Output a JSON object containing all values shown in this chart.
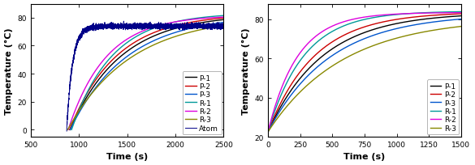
{
  "left": {
    "xlim": [
      500,
      2500
    ],
    "ylim": [
      -5,
      90
    ],
    "xticks": [
      500,
      1000,
      1500,
      2000,
      2500
    ],
    "yticks": [
      0,
      20,
      40,
      60,
      80
    ],
    "xlabel": "Time (s)",
    "ylabel": "Temperature (°C)",
    "series": [
      {
        "label": "P-1",
        "color": "#000000",
        "t_start": 910,
        "tau": 520,
        "t_max": 82.5
      },
      {
        "label": "P-2",
        "color": "#cc0000",
        "t_start": 905,
        "tau": 480,
        "t_max": 82.8
      },
      {
        "label": "P-3",
        "color": "#0055cc",
        "t_start": 910,
        "tau": 580,
        "t_max": 82.0
      },
      {
        "label": "R-1",
        "color": "#009999",
        "t_start": 925,
        "tau": 420,
        "t_max": 83.5
      },
      {
        "label": "R-2",
        "color": "#dd00dd",
        "t_start": 890,
        "tau": 390,
        "t_max": 81.8
      },
      {
        "label": "R-3",
        "color": "#888800",
        "t_start": 885,
        "tau": 650,
        "t_max": 81.2
      },
      {
        "label": "Atom",
        "color": "#000088",
        "t_start": 875,
        "tau": 60,
        "t_max": 74.0,
        "noisy": true
      }
    ]
  },
  "right": {
    "xlim": [
      0,
      1500
    ],
    "ylim": [
      20,
      88
    ],
    "xticks": [
      0,
      250,
      500,
      750,
      1000,
      1250,
      1500
    ],
    "yticks": [
      20,
      40,
      60,
      80
    ],
    "xlabel": "Time (s)",
    "ylabel": "Temperature (°C)",
    "series": [
      {
        "label": "P-1",
        "color": "#000000",
        "tau": 420,
        "y_start": 22.5,
        "y_end": 83.5
      },
      {
        "label": "P-2",
        "color": "#cc0000",
        "tau": 360,
        "y_start": 22.5,
        "y_end": 83.8
      },
      {
        "label": "P-3",
        "color": "#0055cc",
        "tau": 480,
        "y_start": 22.5,
        "y_end": 82.8
      },
      {
        "label": "R-1",
        "color": "#009999",
        "tau": 280,
        "y_start": 22.5,
        "y_end": 84.2
      },
      {
        "label": "R-2",
        "color": "#dd00dd",
        "tau": 230,
        "y_start": 22.5,
        "y_end": 83.5
      },
      {
        "label": "R-3",
        "color": "#888800",
        "tau": 580,
        "y_start": 22.5,
        "y_end": 80.8
      }
    ]
  },
  "bg_color": "#ffffff",
  "legend_fontsize": 6.5,
  "tick_fontsize": 6.5,
  "label_fontsize": 8
}
